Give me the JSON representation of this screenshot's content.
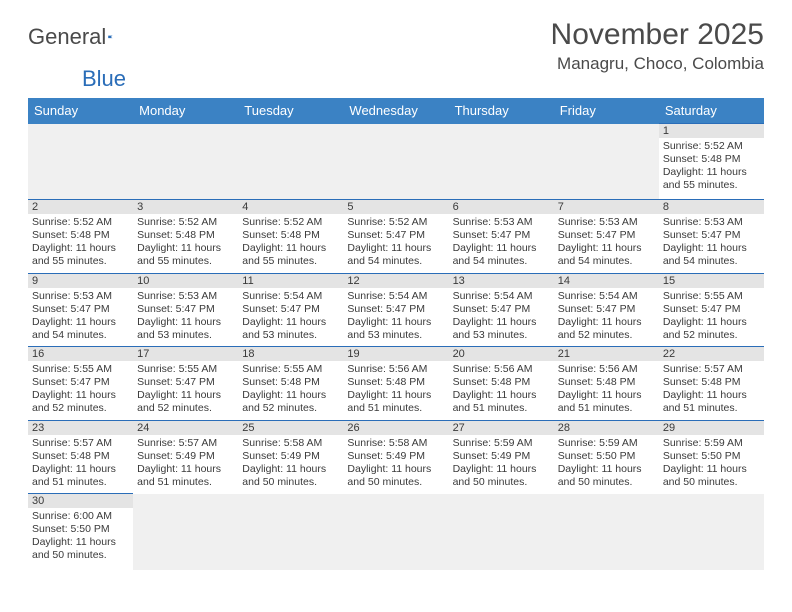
{
  "logo": {
    "word1": "General",
    "word2": "Blue",
    "shape_color": "#2a6db8",
    "text_color": "#4a4a4a"
  },
  "title": "November 2025",
  "location": "Managru, Choco, Colombia",
  "colors": {
    "header_bg": "#3b82c4",
    "header_text": "#ffffff",
    "daynum_bg": "#e4e4e4",
    "row_divider": "#2a6db8",
    "text": "#3a3a3a",
    "empty_bg": "#f0f0f0"
  },
  "day_headers": [
    "Sunday",
    "Monday",
    "Tuesday",
    "Wednesday",
    "Thursday",
    "Friday",
    "Saturday"
  ],
  "weeks": [
    [
      null,
      null,
      null,
      null,
      null,
      null,
      {
        "n": "1",
        "sr": "5:52 AM",
        "ss": "5:48 PM",
        "dl": "11 hours and 55 minutes."
      }
    ],
    [
      {
        "n": "2",
        "sr": "5:52 AM",
        "ss": "5:48 PM",
        "dl": "11 hours and 55 minutes."
      },
      {
        "n": "3",
        "sr": "5:52 AM",
        "ss": "5:48 PM",
        "dl": "11 hours and 55 minutes."
      },
      {
        "n": "4",
        "sr": "5:52 AM",
        "ss": "5:48 PM",
        "dl": "11 hours and 55 minutes."
      },
      {
        "n": "5",
        "sr": "5:52 AM",
        "ss": "5:47 PM",
        "dl": "11 hours and 54 minutes."
      },
      {
        "n": "6",
        "sr": "5:53 AM",
        "ss": "5:47 PM",
        "dl": "11 hours and 54 minutes."
      },
      {
        "n": "7",
        "sr": "5:53 AM",
        "ss": "5:47 PM",
        "dl": "11 hours and 54 minutes."
      },
      {
        "n": "8",
        "sr": "5:53 AM",
        "ss": "5:47 PM",
        "dl": "11 hours and 54 minutes."
      }
    ],
    [
      {
        "n": "9",
        "sr": "5:53 AM",
        "ss": "5:47 PM",
        "dl": "11 hours and 54 minutes."
      },
      {
        "n": "10",
        "sr": "5:53 AM",
        "ss": "5:47 PM",
        "dl": "11 hours and 53 minutes."
      },
      {
        "n": "11",
        "sr": "5:54 AM",
        "ss": "5:47 PM",
        "dl": "11 hours and 53 minutes."
      },
      {
        "n": "12",
        "sr": "5:54 AM",
        "ss": "5:47 PM",
        "dl": "11 hours and 53 minutes."
      },
      {
        "n": "13",
        "sr": "5:54 AM",
        "ss": "5:47 PM",
        "dl": "11 hours and 53 minutes."
      },
      {
        "n": "14",
        "sr": "5:54 AM",
        "ss": "5:47 PM",
        "dl": "11 hours and 52 minutes."
      },
      {
        "n": "15",
        "sr": "5:55 AM",
        "ss": "5:47 PM",
        "dl": "11 hours and 52 minutes."
      }
    ],
    [
      {
        "n": "16",
        "sr": "5:55 AM",
        "ss": "5:47 PM",
        "dl": "11 hours and 52 minutes."
      },
      {
        "n": "17",
        "sr": "5:55 AM",
        "ss": "5:47 PM",
        "dl": "11 hours and 52 minutes."
      },
      {
        "n": "18",
        "sr": "5:55 AM",
        "ss": "5:48 PM",
        "dl": "11 hours and 52 minutes."
      },
      {
        "n": "19",
        "sr": "5:56 AM",
        "ss": "5:48 PM",
        "dl": "11 hours and 51 minutes."
      },
      {
        "n": "20",
        "sr": "5:56 AM",
        "ss": "5:48 PM",
        "dl": "11 hours and 51 minutes."
      },
      {
        "n": "21",
        "sr": "5:56 AM",
        "ss": "5:48 PM",
        "dl": "11 hours and 51 minutes."
      },
      {
        "n": "22",
        "sr": "5:57 AM",
        "ss": "5:48 PM",
        "dl": "11 hours and 51 minutes."
      }
    ],
    [
      {
        "n": "23",
        "sr": "5:57 AM",
        "ss": "5:48 PM",
        "dl": "11 hours and 51 minutes."
      },
      {
        "n": "24",
        "sr": "5:57 AM",
        "ss": "5:49 PM",
        "dl": "11 hours and 51 minutes."
      },
      {
        "n": "25",
        "sr": "5:58 AM",
        "ss": "5:49 PM",
        "dl": "11 hours and 50 minutes."
      },
      {
        "n": "26",
        "sr": "5:58 AM",
        "ss": "5:49 PM",
        "dl": "11 hours and 50 minutes."
      },
      {
        "n": "27",
        "sr": "5:59 AM",
        "ss": "5:49 PM",
        "dl": "11 hours and 50 minutes."
      },
      {
        "n": "28",
        "sr": "5:59 AM",
        "ss": "5:50 PM",
        "dl": "11 hours and 50 minutes."
      },
      {
        "n": "29",
        "sr": "5:59 AM",
        "ss": "5:50 PM",
        "dl": "11 hours and 50 minutes."
      }
    ],
    [
      {
        "n": "30",
        "sr": "6:00 AM",
        "ss": "5:50 PM",
        "dl": "11 hours and 50 minutes."
      },
      null,
      null,
      null,
      null,
      null,
      null
    ]
  ],
  "labels": {
    "sunrise": "Sunrise:",
    "sunset": "Sunset:",
    "daylight": "Daylight:"
  }
}
